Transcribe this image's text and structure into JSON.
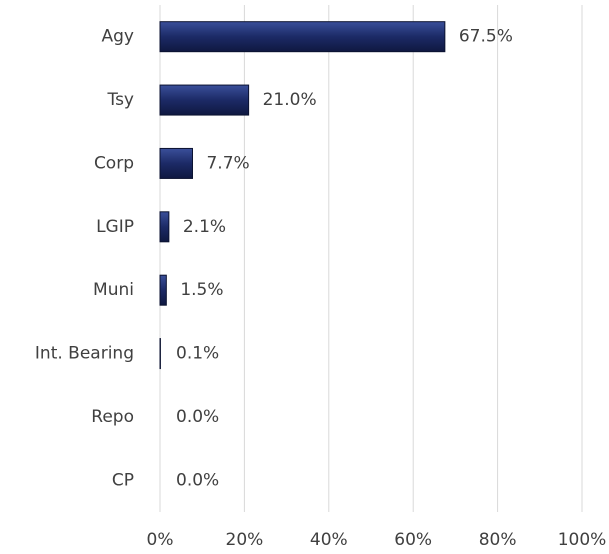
{
  "chart_data": {
    "type": "bar",
    "orientation": "horizontal",
    "categories": [
      "Agy",
      "Tsy",
      "Corp",
      "LGIP",
      "Muni",
      "Int. Bearing",
      "Repo",
      "CP"
    ],
    "values": [
      67.5,
      21.0,
      7.7,
      2.1,
      1.5,
      0.1,
      0.0,
      0.0
    ],
    "value_labels": [
      "67.5%",
      "21.0%",
      "7.7%",
      "2.1%",
      "1.5%",
      "0.1%",
      "0.0%",
      "0.0%"
    ],
    "color": "#1c2a66",
    "xlim": [
      0,
      100
    ],
    "xticks": [
      {
        "value": 0,
        "label": "0%"
      },
      {
        "value": 20,
        "label": "20%"
      },
      {
        "value": 40,
        "label": "40%"
      },
      {
        "value": 60,
        "label": "60%"
      },
      {
        "value": 80,
        "label": "80%"
      },
      {
        "value": 100,
        "label": "100%"
      }
    ],
    "grid": true
  }
}
